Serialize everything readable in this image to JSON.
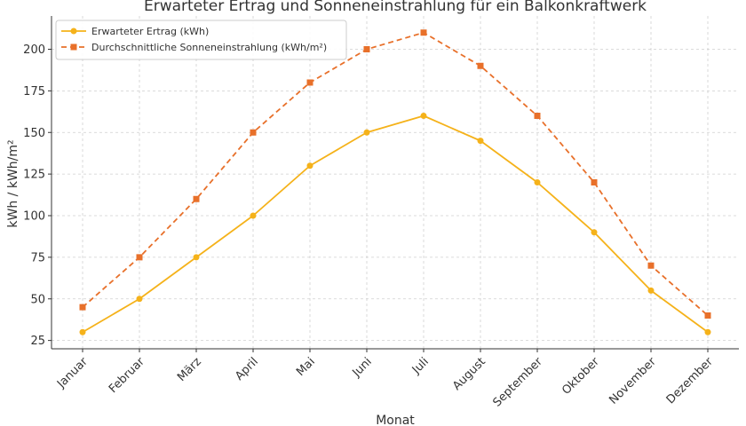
{
  "chart_data": {
    "type": "line",
    "title": "Erwarteter Ertrag und Sonneneinstrahlung für ein Balkonkraftwerk",
    "xlabel": "Monat",
    "ylabel": "kWh / kWh/m²",
    "categories": [
      "Januar",
      "Februar",
      "März",
      "April",
      "Mai",
      "Juni",
      "Juli",
      "August",
      "September",
      "Oktober",
      "November",
      "Dezember"
    ],
    "ylim": [
      20,
      220
    ],
    "yticks": [
      25,
      50,
      75,
      100,
      125,
      150,
      175,
      200
    ],
    "grid": true,
    "legend_position": "top-left",
    "series": [
      {
        "name": "Erwarteter Ertrag (kWh)",
        "values": [
          30,
          50,
          75,
          100,
          130,
          150,
          160,
          145,
          120,
          90,
          55,
          30
        ],
        "color": "#f5b21a",
        "style": "solid",
        "marker": "circle"
      },
      {
        "name": "Durchschnittliche Sonneneinstrahlung (kWh/m²)",
        "values": [
          45,
          75,
          110,
          150,
          180,
          200,
          210,
          190,
          160,
          120,
          70,
          40
        ],
        "color": "#e8702a",
        "style": "dashed",
        "marker": "square"
      }
    ]
  }
}
